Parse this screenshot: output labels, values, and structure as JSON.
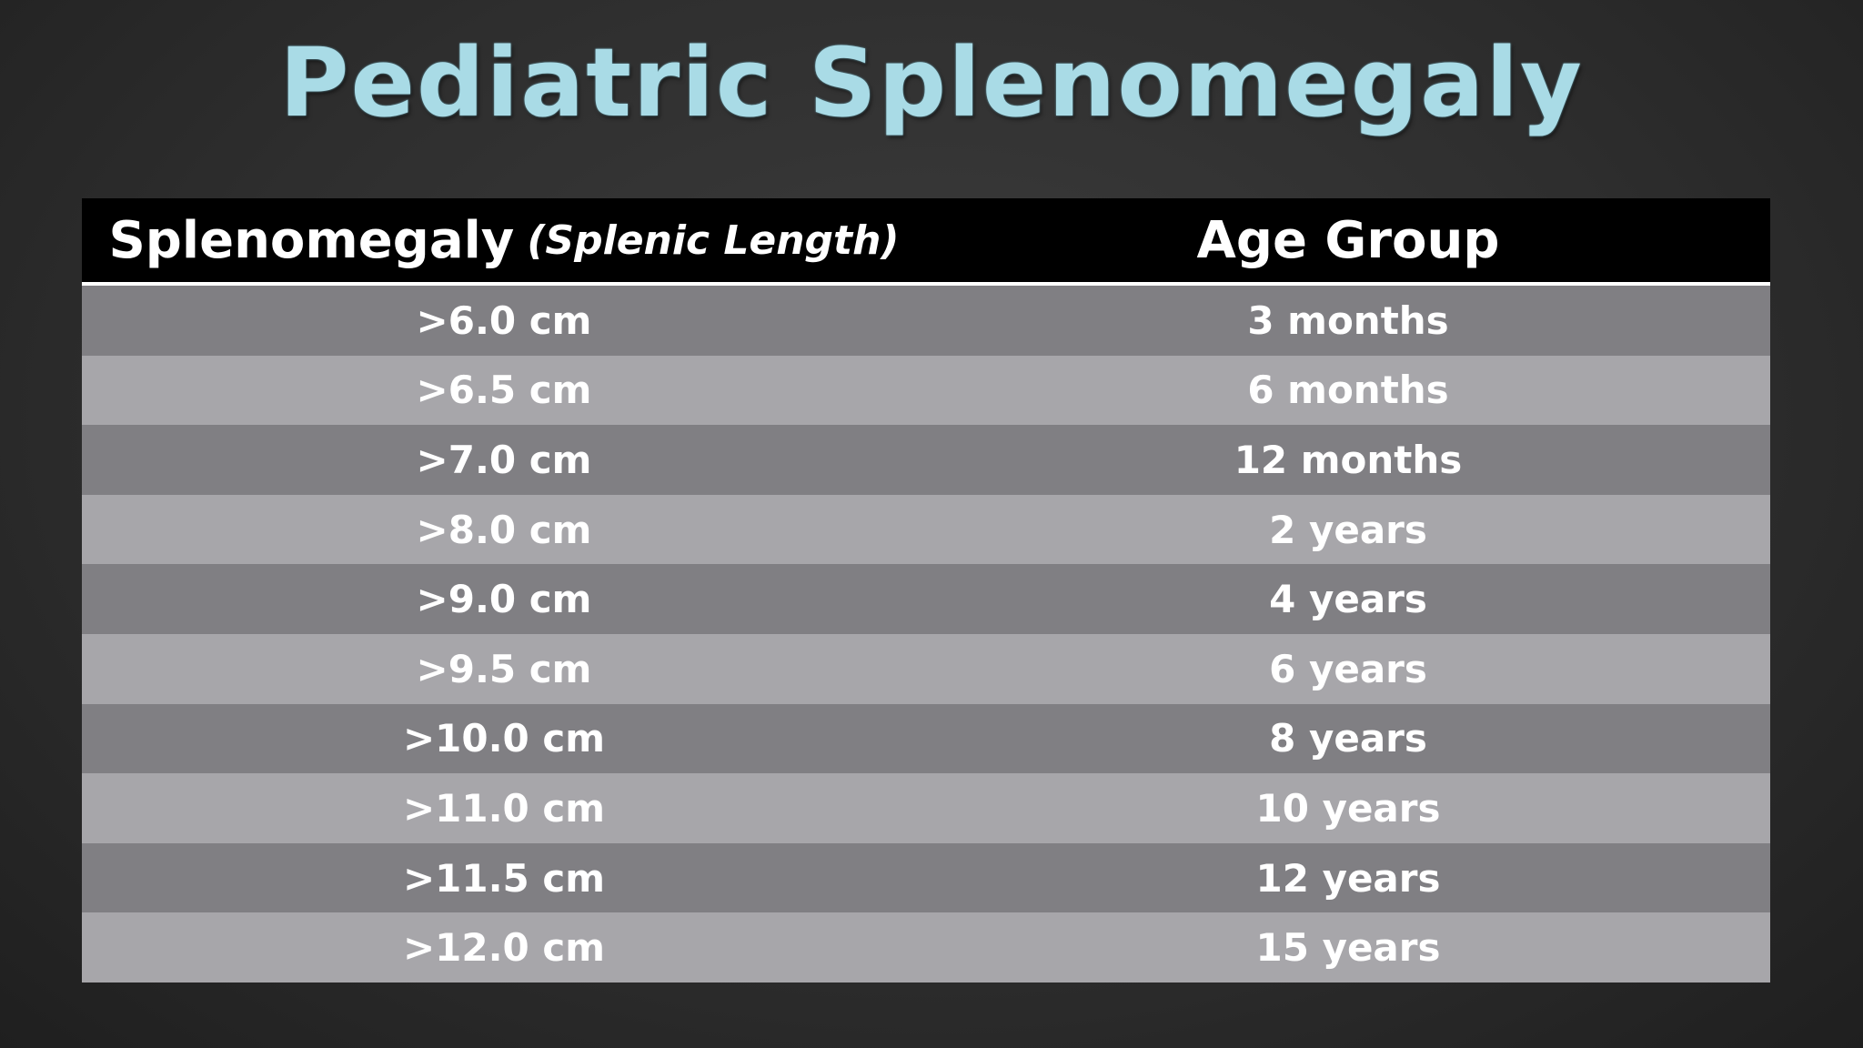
{
  "header": {
    "title": "Pediatric Splenomegaly"
  },
  "table": {
    "columns": [
      {
        "main": "Splenomegaly",
        "note": "(Splenic Length)"
      },
      {
        "main": "Age Group"
      }
    ],
    "rows": [
      [
        ">6.0 cm",
        "3 months"
      ],
      [
        ">6.5 cm",
        "6 months"
      ],
      [
        ">7.0 cm",
        "12 months"
      ],
      [
        ">8.0 cm",
        "2 years"
      ],
      [
        ">9.0 cm",
        "4 years"
      ],
      [
        ">9.5 cm",
        "6 years"
      ],
      [
        ">10.0 cm",
        "8 years"
      ],
      [
        ">11.0 cm",
        "10 years"
      ],
      [
        ">11.5 cm",
        "12 years"
      ],
      [
        ">12.0 cm",
        "15 years"
      ]
    ]
  }
}
